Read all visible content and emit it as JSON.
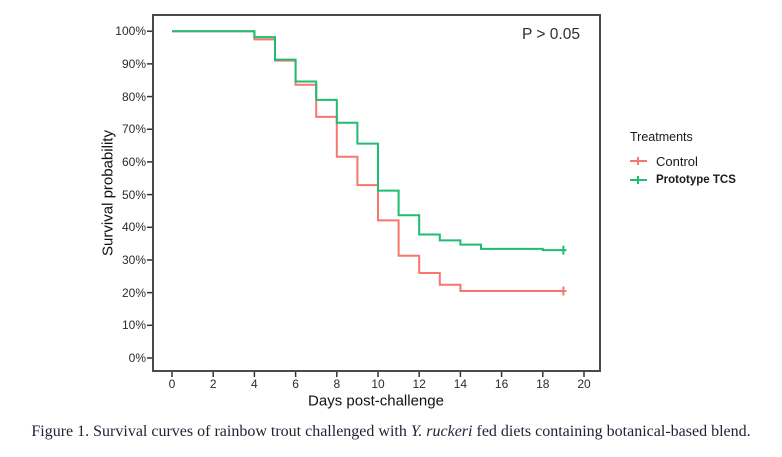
{
  "figure": {
    "p_value_annotation": "P > 0.05",
    "x_axis_label": "Days post-challenge",
    "y_axis_label": "Survival probability"
  },
  "legend": {
    "title": "Treatments",
    "items": [
      {
        "label": "Control",
        "color": "#F8766D"
      },
      {
        "label": "Prototype TCS",
        "color": "#1FBC71"
      }
    ]
  },
  "caption": {
    "prefix": "Figure 1. Survival curves of rainbow trout challenged with ",
    "italic": "Y. ruckeri",
    "suffix": " fed diets containing botanical-based blend."
  },
  "chart_data": {
    "type": "line",
    "subtype": "kaplan-meier-step-survival",
    "title": "",
    "xlabel": "Days post-challenge",
    "ylabel": "Survival probability",
    "xlim": [
      0,
      20
    ],
    "ylim": [
      0,
      100
    ],
    "x_ticks": [
      0,
      2,
      4,
      6,
      8,
      10,
      12,
      14,
      16,
      18,
      20
    ],
    "y_ticks": [
      0,
      10,
      20,
      30,
      40,
      50,
      60,
      70,
      80,
      90,
      100
    ],
    "y_tick_suffix": "%",
    "grid": false,
    "legend_position": "right",
    "panel_border_color": "#4a4a4a",
    "tick_color": "#333333",
    "annotation": {
      "text": "P > 0.05"
    },
    "series": [
      {
        "name": "Control",
        "color": "#F8766D",
        "steps": [
          [
            0,
            100
          ],
          [
            4,
            97.5
          ],
          [
            5,
            91
          ],
          [
            6,
            83.6
          ],
          [
            7,
            73.8
          ],
          [
            8,
            61.6
          ],
          [
            9,
            52.9
          ],
          [
            10,
            42.1
          ],
          [
            11,
            31.3
          ],
          [
            12,
            26
          ],
          [
            13,
            22.4
          ],
          [
            14,
            20.5
          ]
        ],
        "end_day": 19,
        "censored_at_end": true
      },
      {
        "name": "Prototype TCS",
        "color": "#1FBC71",
        "steps": [
          [
            0,
            100
          ],
          [
            4,
            98.2
          ],
          [
            5,
            91.3
          ],
          [
            6,
            84.6
          ],
          [
            7,
            79
          ],
          [
            8,
            72
          ],
          [
            9,
            65.6
          ],
          [
            10,
            51.2
          ],
          [
            11,
            43.7
          ],
          [
            12,
            37.8
          ],
          [
            13,
            36
          ],
          [
            14,
            34.7
          ],
          [
            15,
            33.4
          ],
          [
            18,
            33
          ]
        ],
        "end_day": 19,
        "censored_at_end": true
      }
    ]
  }
}
